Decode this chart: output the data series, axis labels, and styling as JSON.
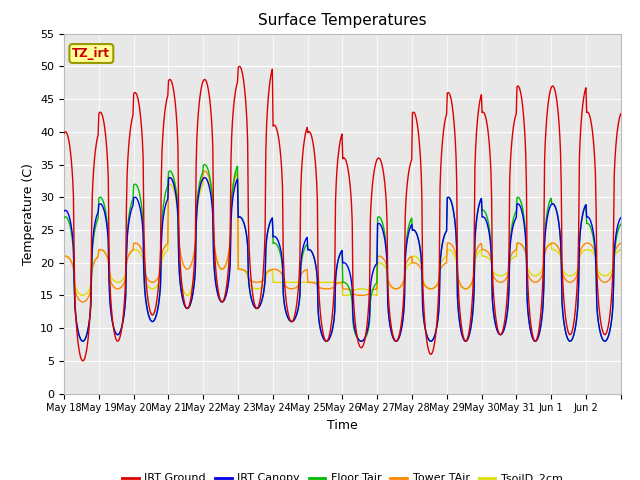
{
  "title": "Surface Temperatures",
  "xlabel": "Time",
  "ylabel": "Temperature (C)",
  "ylim": [
    0,
    55
  ],
  "bg_color": "#e8e8e8",
  "annotation_text": "TZ_irt",
  "annotation_color": "#cc0000",
  "annotation_bg": "#ffff99",
  "annotation_border": "#999900",
  "xtick_labels": [
    "May 18",
    "May 19",
    "May 20",
    "May 21",
    "May 22",
    "May 23",
    "May 24",
    "May 25",
    "May 26",
    "May 27",
    "May 28",
    "May 29",
    "May 30",
    "May 31",
    "Jun 1",
    "Jun 2"
  ],
  "legend_entries": [
    "IRT Ground",
    "IRT Canopy",
    "Floor Tair",
    "Tower TAir",
    "TsoilD_2cm"
  ],
  "legend_colors": [
    "#dd0000",
    "#0000ee",
    "#00bb00",
    "#ff8800",
    "#dddd00"
  ],
  "series_colors": [
    "#dd0000",
    "#0000ee",
    "#00bb00",
    "#ff8800",
    "#dddd00"
  ],
  "ground_peaks": [
    40,
    43,
    46,
    48,
    48,
    50,
    41,
    40,
    36,
    36,
    43,
    46,
    43,
    47,
    47,
    43
  ],
  "ground_mins": [
    5,
    8,
    12,
    13,
    14,
    13,
    11,
    8,
    7,
    8,
    6,
    8,
    9,
    8,
    9,
    9
  ],
  "canopy_peaks": [
    28,
    29,
    30,
    33,
    33,
    27,
    24,
    22,
    20,
    26,
    25,
    30,
    27,
    29,
    29,
    27
  ],
  "canopy_mins": [
    8,
    9,
    11,
    13,
    14,
    13,
    11,
    8,
    8,
    8,
    8,
    8,
    9,
    8,
    8,
    8
  ],
  "floor_peaks": [
    27,
    30,
    32,
    34,
    35,
    27,
    23,
    22,
    17,
    27,
    25,
    30,
    28,
    30,
    29,
    26
  ],
  "floor_mins": [
    8,
    9,
    11,
    13,
    14,
    13,
    11,
    8,
    8,
    8,
    8,
    8,
    9,
    8,
    8,
    8
  ],
  "tower_peaks": [
    21,
    22,
    23,
    33,
    34,
    19,
    19,
    17,
    16,
    21,
    20,
    23,
    22,
    23,
    23,
    23
  ],
  "tower_mins": [
    14,
    16,
    17,
    19,
    19,
    17,
    16,
    16,
    15,
    16,
    16,
    16,
    17,
    17,
    17,
    17
  ],
  "tsoil_peaks": [
    21,
    22,
    22,
    32,
    33,
    19,
    17,
    17,
    15,
    20,
    21,
    22,
    21,
    23,
    22,
    22
  ],
  "tsoil_mins": [
    15,
    17,
    16,
    15,
    19,
    16,
    17,
    17,
    16,
    16,
    16,
    16,
    18,
    18,
    18,
    18
  ],
  "n_days": 16,
  "pts_per_day": 48,
  "peak_hour": 13.0,
  "sharpness": 2.5
}
